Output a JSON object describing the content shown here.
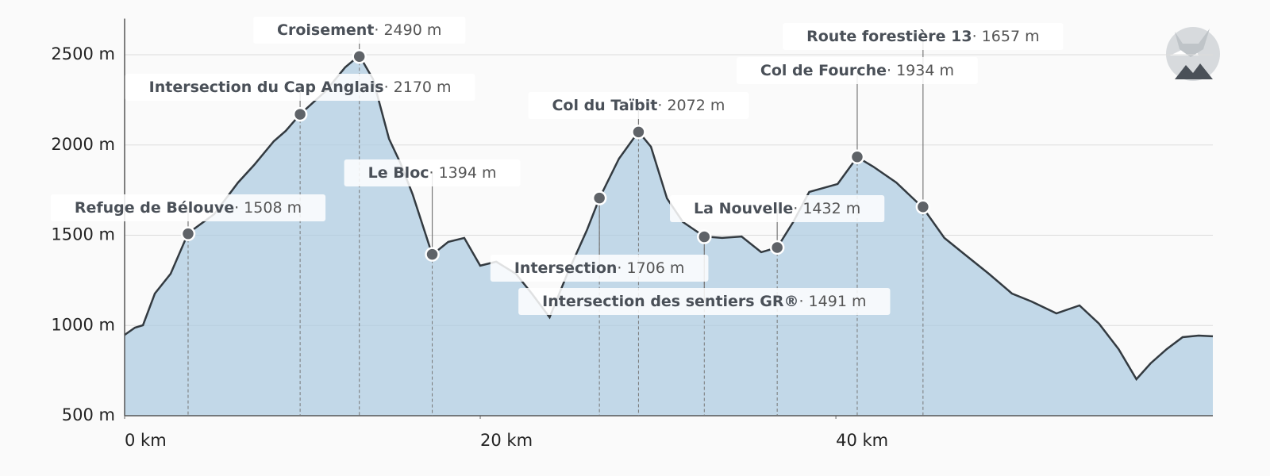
{
  "chart_data": {
    "type": "area",
    "color": "#a9c9df",
    "line_color": "#333a40",
    "marker_color": "#5f6368",
    "grid": true,
    "x": [
      0,
      0.58,
      1.03,
      1.7,
      2.59,
      3.57,
      5.04,
      6.38,
      7.28,
      8.39,
      9.06,
      9.87,
      11.3,
      12.4,
      13.2,
      13.97,
      14.87,
      15.5,
      16.2,
      17.3,
      18.2,
      19.1,
      20.0,
      20.9,
      22.0,
      22.9,
      23.9,
      24.9,
      26.0,
      26.7,
      27.8,
      28.9,
      29.6,
      30.5,
      31.4,
      32.6,
      33.6,
      34.7,
      35.8,
      36.7,
      37.6,
      38.5,
      40.1,
      41.2,
      42.1,
      43.4,
      44.9,
      46.1,
      47.2,
      48.6,
      49.9,
      51.0,
      52.4,
      53.7,
      54.8,
      55.9,
      56.9,
      57.7,
      58.6,
      59.5,
      60.4,
      61.2
    ],
    "values": [
      948,
      988,
      1001,
      1177,
      1287,
      1511,
      1617,
      1792,
      1889,
      2021,
      2078,
      2170,
      2298,
      2430,
      2496,
      2364,
      2034,
      1902,
      1726,
      1392,
      1463,
      1485,
      1331,
      1353,
      1287,
      1177,
      1045,
      1287,
      1529,
      1704,
      1924,
      2074,
      1990,
      1704,
      1573,
      1493,
      1485,
      1493,
      1406,
      1432,
      1573,
      1740,
      1784,
      1933,
      1880,
      1792,
      1652,
      1485,
      1397,
      1287,
      1177,
      1133,
      1067,
      1111,
      1010,
      869,
      702,
      790,
      869,
      935,
      944,
      940
    ],
    "xlim": [
      0,
      61.2
    ],
    "ylim": [
      500,
      2700
    ],
    "xticks": [
      {
        "value": 0,
        "label": "0 km"
      },
      {
        "value": 20,
        "label": "20 km"
      },
      {
        "value": 40,
        "label": "40 km"
      }
    ],
    "yticks": [
      {
        "value": 500,
        "label": "500 m"
      },
      {
        "value": 1000,
        "label": "1000 m"
      },
      {
        "value": 1500,
        "label": "1500 m"
      },
      {
        "value": 2000,
        "label": "2000 m"
      },
      {
        "value": 2500,
        "label": "2500 m"
      }
    ],
    "annotations": [
      {
        "name": "Croisement",
        "x": 13.2,
        "value": 2490,
        "value_label": "· 2490 m"
      },
      {
        "name": "Intersection du Cap Anglais",
        "x": 9.87,
        "value": 2170,
        "value_label": "· 2170 m"
      },
      {
        "name": "Refuge de Bélouve",
        "x": 3.57,
        "value": 1508,
        "value_label": "· 1508 m"
      },
      {
        "name": "Le Bloc",
        "x": 17.3,
        "value": 1394,
        "value_label": "· 1394 m"
      },
      {
        "name": "Col du Taïbit",
        "x": 28.9,
        "value": 2072,
        "value_label": "· 2072 m"
      },
      {
        "name": "Intersection",
        "x": 26.7,
        "value": 1706,
        "value_label": "· 1706 m"
      },
      {
        "name": "La Nouvelle",
        "x": 36.7,
        "value": 1432,
        "value_label": "· 1432 m"
      },
      {
        "name": "Intersection des sentiers GR®",
        "x": 32.6,
        "value": 1491,
        "value_label": "· 1491 m"
      },
      {
        "name": "Col de Fourche",
        "x": 41.2,
        "value": 1934,
        "value_label": "· 1934 m"
      },
      {
        "name": "Route forestière 13",
        "x": 44.9,
        "value": 1657,
        "value_label": "· 1657 m"
      }
    ]
  }
}
